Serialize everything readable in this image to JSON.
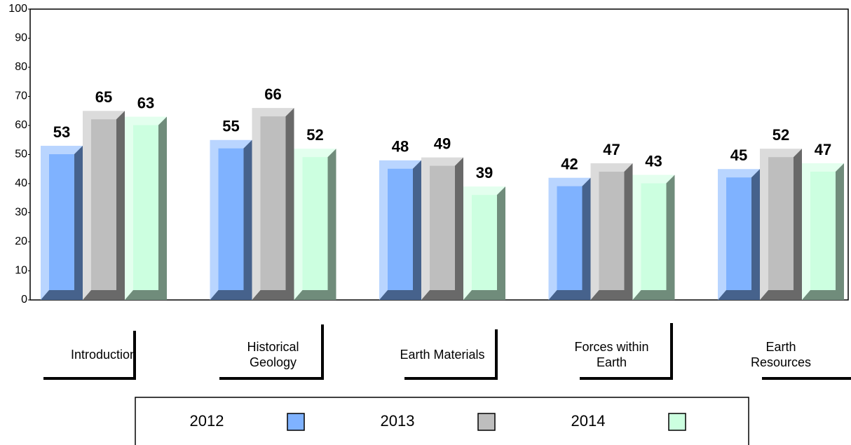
{
  "chart_data": {
    "type": "bar",
    "categories": [
      "Introduction",
      "Historical Geology",
      "Earth Materials",
      "Forces within Earth",
      "Earth Resources"
    ],
    "series": [
      {
        "name": "2012",
        "color": "#7fb2ff",
        "values": [
          53,
          55,
          48,
          42,
          45
        ]
      },
      {
        "name": "2013",
        "color": "#bebebe",
        "values": [
          65,
          66,
          49,
          47,
          52
        ]
      },
      {
        "name": "2014",
        "color": "#ccffe0",
        "values": [
          63,
          52,
          39,
          43,
          47
        ]
      }
    ],
    "ylim": [
      0,
      100
    ],
    "yticks": [
      0,
      10,
      20,
      30,
      40,
      50,
      60,
      70,
      80,
      90,
      100
    ],
    "grid": false
  }
}
